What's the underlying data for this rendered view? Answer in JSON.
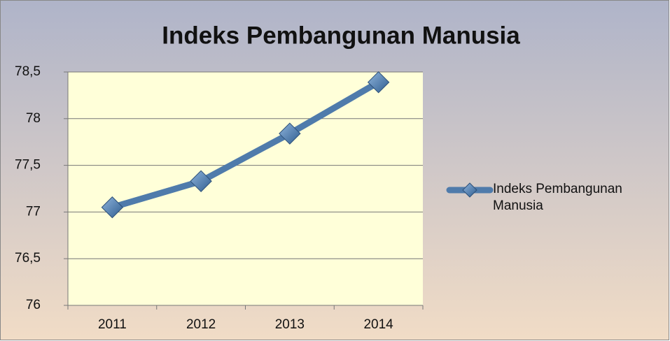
{
  "chart_data": {
    "type": "line",
    "title": "Indeks Pembangunan Manusia",
    "categories": [
      "2011",
      "2012",
      "2013",
      "2014"
    ],
    "series": [
      {
        "name": "Indeks Pembangunan Manusia",
        "color": "#4f7bab",
        "values": [
          77.05,
          77.33,
          77.84,
          78.39
        ]
      }
    ],
    "ylim": [
      76,
      78.5
    ],
    "yticks": [
      76,
      {
        "value": 76.5,
        "label": "76,5"
      },
      77,
      {
        "value": 77.5,
        "label": "77,5"
      },
      78,
      {
        "value": 78.5,
        "label": "78,5"
      }
    ],
    "grid": true,
    "legend": "right"
  }
}
